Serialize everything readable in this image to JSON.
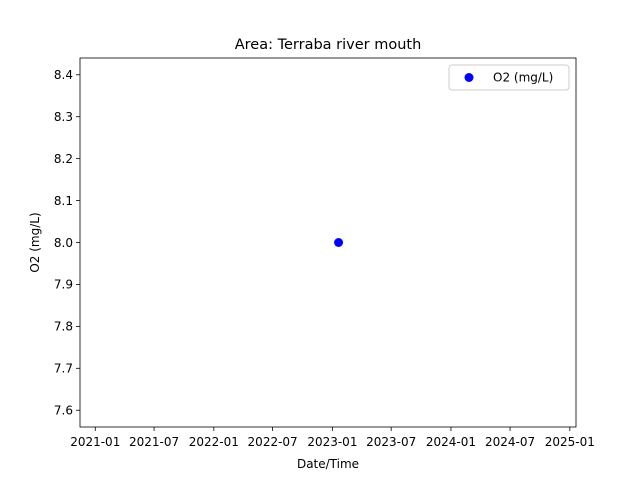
{
  "chart_data": {
    "type": "scatter",
    "title": "Area: Terraba river mouth",
    "xlabel": "Date/Time",
    "ylabel": "O2 (mg/L)",
    "x_type": "date",
    "xlim": [
      "2020-11-15",
      "2025-01-20"
    ],
    "ylim": [
      7.56,
      8.44
    ],
    "x_ticks": [
      "2021-01-01",
      "2021-07-01",
      "2022-01-01",
      "2022-07-01",
      "2023-01-01",
      "2023-07-01",
      "2024-01-01",
      "2024-07-01",
      "2025-01-01"
    ],
    "x_tick_labels": [
      "2021-01",
      "2021-07",
      "2022-01",
      "2022-07",
      "2023-01",
      "2023-07",
      "2024-01",
      "2024-07",
      "2025-01"
    ],
    "y_ticks": [
      7.6,
      7.7,
      7.8,
      7.9,
      8.0,
      8.1,
      8.2,
      8.3,
      8.4
    ],
    "y_tick_labels": [
      "7.6",
      "7.7",
      "7.8",
      "7.9",
      "8.0",
      "8.1",
      "8.2",
      "8.3",
      "8.4"
    ],
    "series": [
      {
        "name": "O2 (mg/L)",
        "color": "#0000ff",
        "points": [
          {
            "x": "2023-01-20",
            "y": 8.0
          }
        ]
      }
    ],
    "legend": {
      "position": "top-right"
    },
    "grid": false
  }
}
